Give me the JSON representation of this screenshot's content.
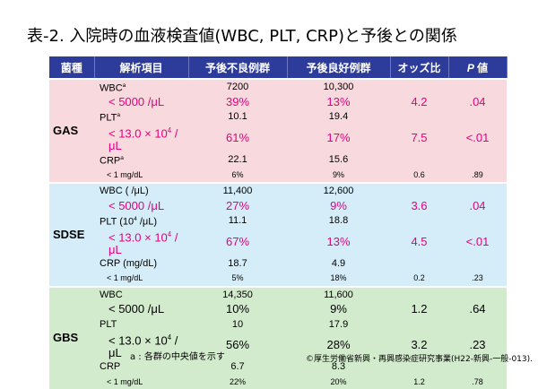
{
  "title": "表-2. 入院時の血液検査値(WBC, PLT, CRP)と予後との関係",
  "table": {
    "header": [
      "菌種",
      "解析項目",
      "予後不良例群",
      "予後良好例群",
      "オッズ比",
      {
        "italic": "P",
        "text": "値"
      }
    ],
    "groups": [
      {
        "name": "GAS",
        "rows": [
          {
            "label": {
              "text": "WBC",
              "sup": "a"
            },
            "cells": [
              "7200",
              "10,300"
            ]
          },
          {
            "label": {
              "text": "< 5000 /μL"
            },
            "cells": [
              "39%",
              "13%",
              "4.2",
              ".04"
            ]
          },
          {
            "label": {
              "text": "PLT",
              "sup": "a"
            },
            "cells": [
              "10.1",
              "19.4"
            ]
          },
          {
            "label": {
              "text": "< 13.0 × 10",
              "sup": "4",
              "after": "/μL"
            },
            "cells": [
              "61%",
              "17%",
              "7.5",
              "<.01"
            ]
          },
          {
            "label": {
              "text": "CRP",
              "sup": "a"
            },
            "cells": [
              "22.1",
              "15.6"
            ]
          },
          {
            "label": {
              "text": "< 1 mg/dL"
            },
            "cells": [
              "6%",
              "9%",
              "0.6",
              ".89"
            ]
          }
        ]
      },
      {
        "name": "SDSE",
        "rows": [
          {
            "label": {
              "text": "WBC ( /μL)"
            },
            "cells": [
              "11,400",
              "12,600"
            ]
          },
          {
            "label": {
              "text": "< 5000 /μL"
            },
            "cells": [
              "27%",
              "9%",
              "3.6",
              ".04"
            ]
          },
          {
            "label": {
              "text": "PLT (10",
              "sup": "4",
              "after": "/μL)"
            },
            "cells": [
              "11.1",
              "18.8"
            ]
          },
          {
            "label": {
              "text": "< 13.0 × 10",
              "sup": "4",
              "after": "/μL"
            },
            "cells": [
              "67%",
              "13%",
              "4.5",
              "<.01"
            ]
          },
          {
            "label": {
              "text": "CRP (mg/dL)"
            },
            "cells": [
              "18.7",
              "4.9"
            ]
          },
          {
            "label": {
              "text": "< 1 mg/dL"
            },
            "cells": [
              "5%",
              "18%",
              "0.2",
              ".23"
            ]
          }
        ]
      },
      {
        "name": "GBS",
        "rows": [
          {
            "label": {
              "text": "WBC"
            },
            "cells": [
              "14,350",
              "11,600"
            ]
          },
          {
            "label": {
              "text": "< 5000 /μL"
            },
            "cells": [
              "10%",
              "9%",
              "1.2",
              ".64"
            ]
          },
          {
            "label": {
              "text": "PLT"
            },
            "cells": [
              "10",
              "17.9"
            ]
          },
          {
            "label": {
              "text": "< 13.0 × 10",
              "sup": "4",
              "after": "/μL"
            },
            "cells": [
              "56%",
              "28%",
              "3.2",
              ".23"
            ]
          },
          {
            "label": {
              "text": "CRP"
            },
            "cells": [
              "6.7",
              "8.3"
            ]
          },
          {
            "label": {
              "text": "< 1 mg/dL"
            },
            "cells": [
              "22%",
              "20%",
              "1.2",
              ".78"
            ]
          }
        ]
      }
    ]
  },
  "footnote": "a : 各群の中央値を示す",
  "source": "©厚生労働省新興・再興感染症研究事業(H22-新興-一般-013)."
}
